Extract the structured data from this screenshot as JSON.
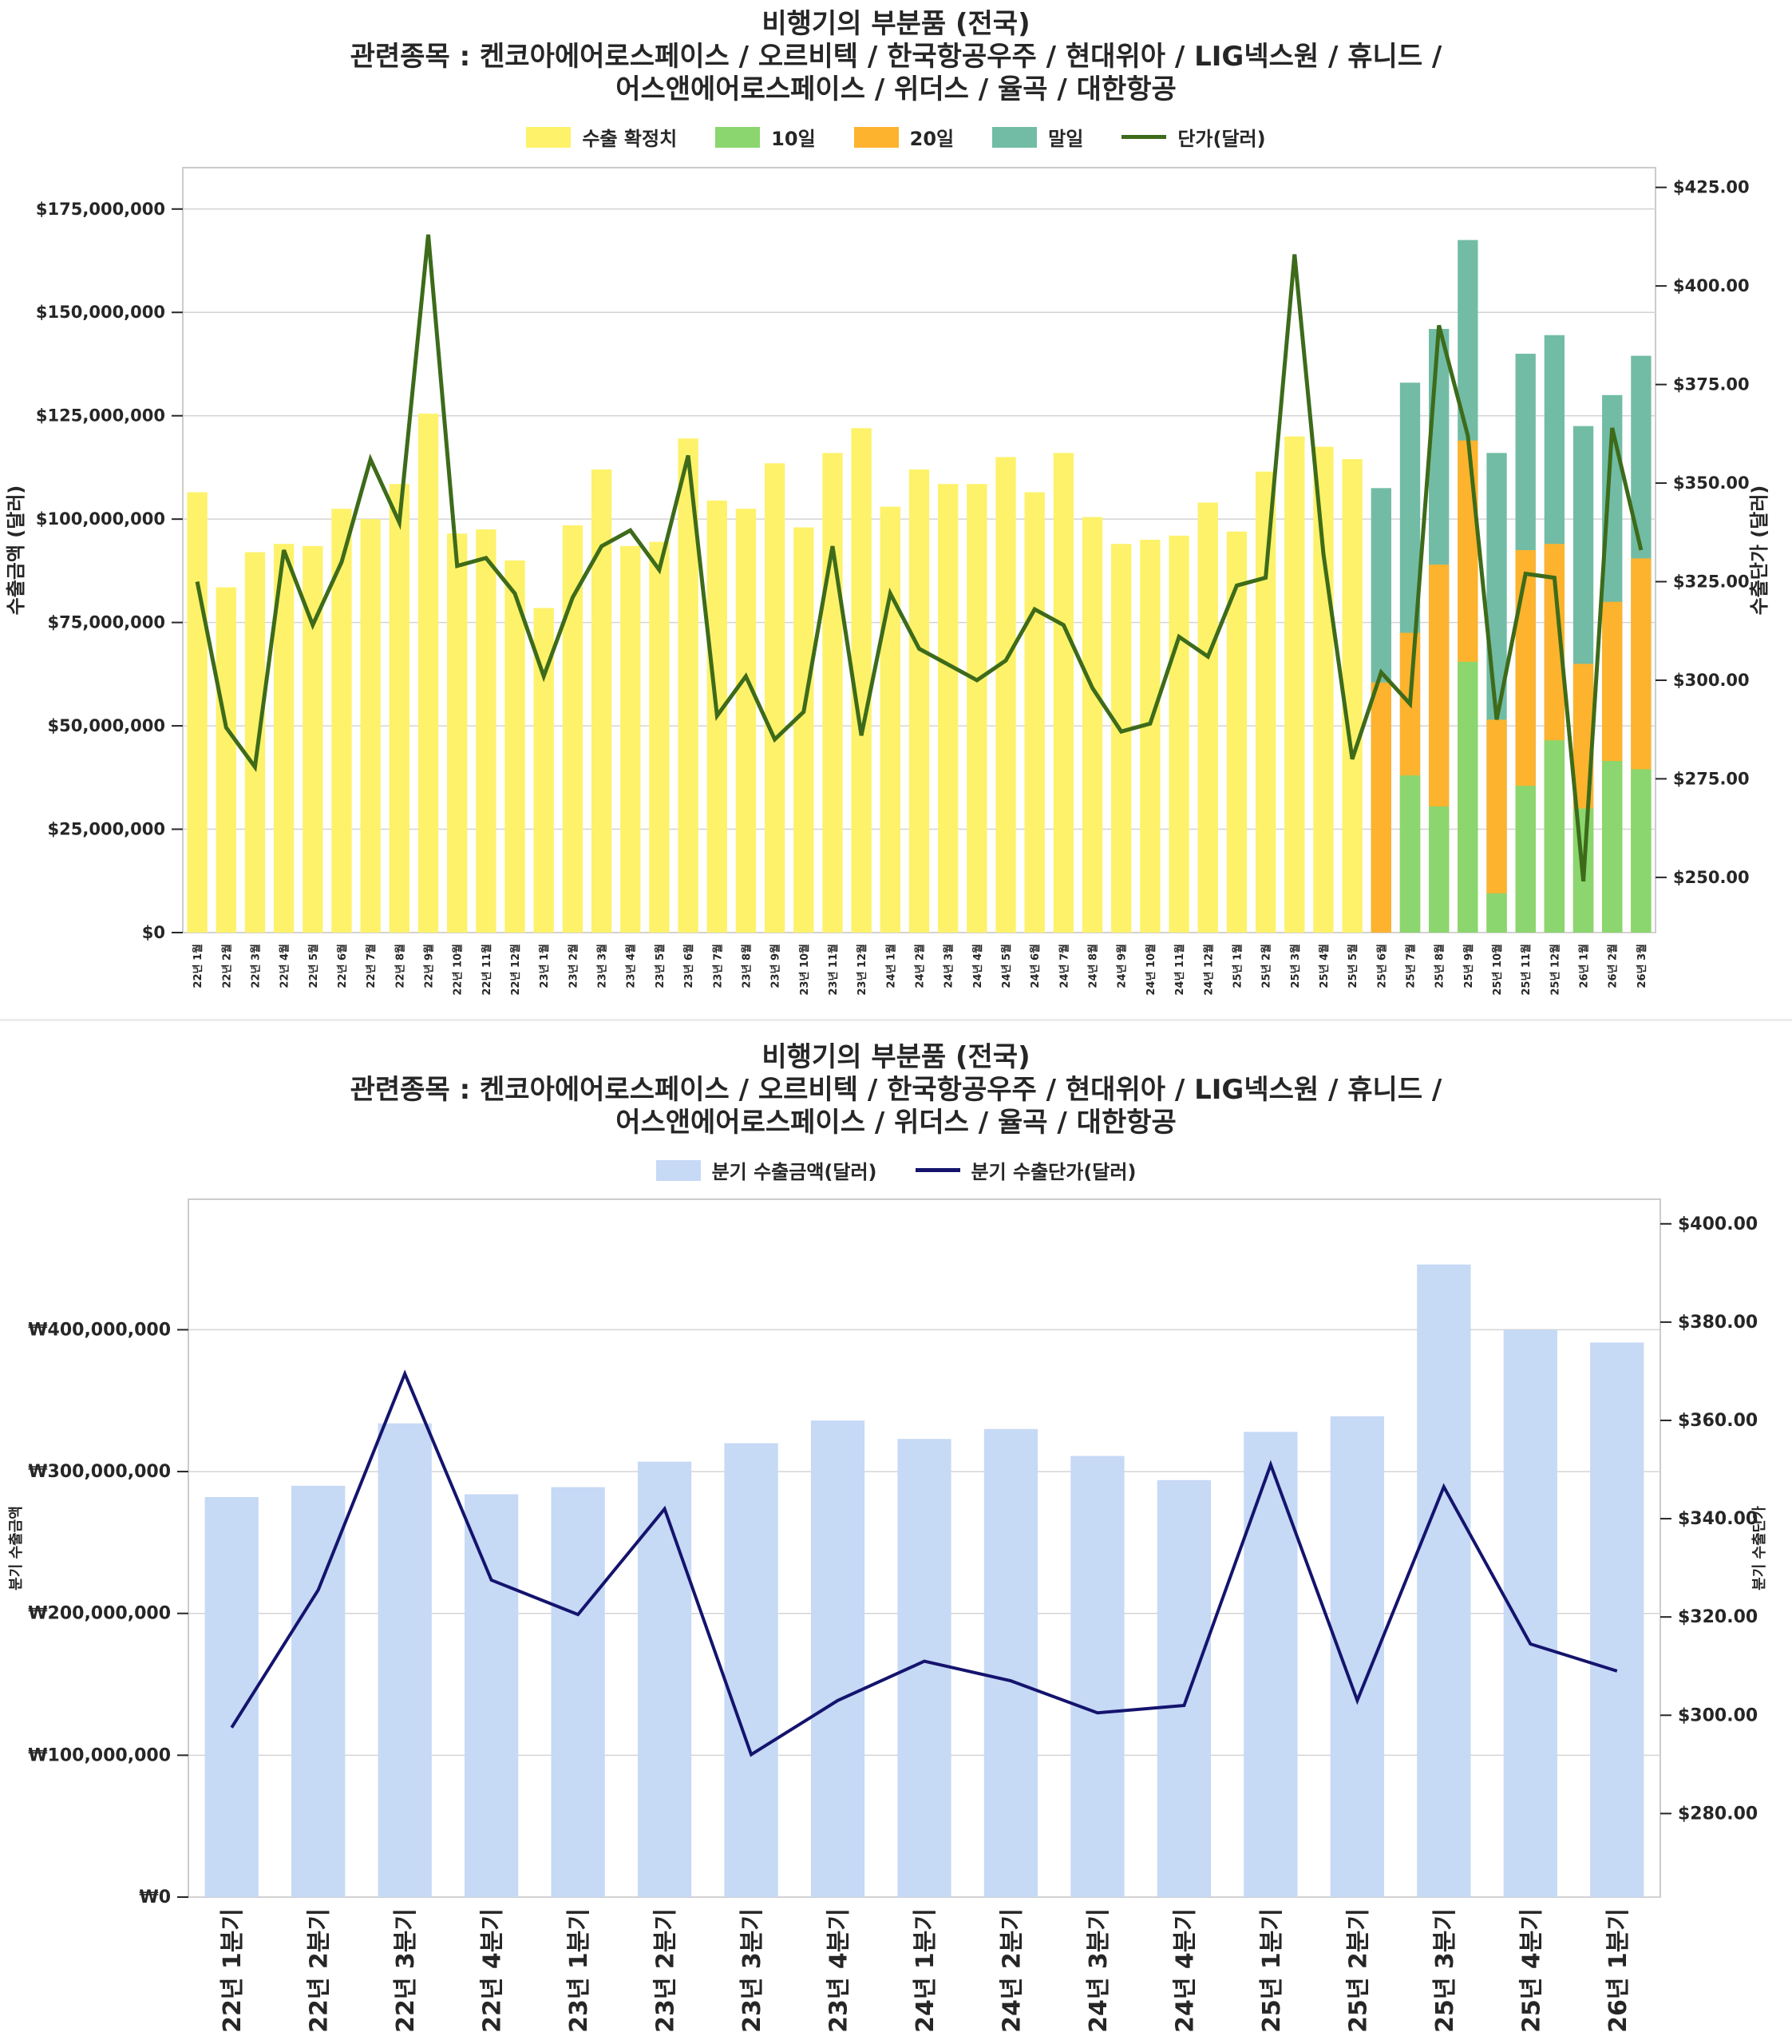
{
  "chart_data": [
    {
      "type": "bar",
      "title": "비행기의 부분품 (전국)",
      "subtitle_lines": [
        "관련종목 : 켄코아에어로스페이스 / 오르비텍 / 한국항공우주 / 현대위아 / LIG넥스원 / 휴니드 /",
        "어스앤에어로스페이스 / 위더스 / 율곡 / 대한항공"
      ],
      "xlabel": "",
      "ylabel": "수출금액 (달러)",
      "y2label": "수출단가 (달러)",
      "ylim": [
        0,
        185000000
      ],
      "y2lim": [
        236,
        430
      ],
      "yticks": [
        "$0",
        "$25,000,000",
        "$50,000,000",
        "$75,000,000",
        "$100,000,000",
        "$125,000,000",
        "$150,000,000",
        "$175,000,000"
      ],
      "ytick_values": [
        0,
        25000000,
        50000000,
        75000000,
        100000000,
        125000000,
        150000000,
        175000000
      ],
      "y2ticks": [
        "$250.00",
        "$275.00",
        "$300.00",
        "$325.00",
        "$350.00",
        "$375.00",
        "$400.00",
        "$425.00"
      ],
      "y2tick_values": [
        250,
        275,
        300,
        325,
        350,
        375,
        400,
        425
      ],
      "grid": true,
      "legend_position": "top-center",
      "legend": [
        {
          "name": "수출 확정치",
          "kind": "bar",
          "color": "#fdf26a"
        },
        {
          "name": "10일",
          "kind": "bar",
          "color": "#8bd66e"
        },
        {
          "name": "20일",
          "kind": "bar",
          "color": "#fdb32e"
        },
        {
          "name": "말일",
          "kind": "bar",
          "color": "#72bca5"
        },
        {
          "name": "단가(달러)",
          "kind": "line",
          "color": "#3d6b1a"
        }
      ],
      "categories": [
        "22년 1월",
        "22년 2월",
        "22년 3월",
        "22년 4월",
        "22년 5월",
        "22년 6월",
        "22년 7월",
        "22년 8월",
        "22년 9월",
        "22년 10월",
        "22년 11월",
        "22년 12월",
        "23년 1월",
        "23년 2월",
        "23년 3월",
        "23년 4월",
        "23년 5월",
        "23년 6월",
        "23년 7월",
        "23년 8월",
        "23년 9월",
        "23년 10월",
        "23년 11월",
        "23년 12월",
        "24년 1월",
        "24년 2월",
        "24년 3월",
        "24년 4월",
        "24년 5월",
        "24년 6월",
        "24년 7월",
        "24년 8월",
        "24년 9월",
        "24년 10월",
        "24년 11월",
        "24년 12월",
        "25년 1월",
        "25년 2월",
        "25년 3월",
        "25년 4월",
        "25년 5월",
        "25년 6월",
        "25년 7월",
        "25년 8월",
        "25년 9월",
        "25년 10월",
        "25년 11월",
        "25년 12월",
        "26년 1월",
        "26년 2월",
        "26년 3월"
      ],
      "series": [
        {
          "name": "수출 확정치",
          "values": [
            106500000,
            83500000,
            92000000,
            94000000,
            93500000,
            102500000,
            100000000,
            108500000,
            125500000,
            96500000,
            97500000,
            90000000,
            78500000,
            98500000,
            112000000,
            93500000,
            94500000,
            119500000,
            104500000,
            102500000,
            113500000,
            98000000,
            116000000,
            122000000,
            103000000,
            112000000,
            108500000,
            108500000,
            115000000,
            106500000,
            116000000,
            100500000,
            94000000,
            95000000,
            96000000,
            104000000,
            97000000,
            111500000,
            120000000,
            117500000,
            114500000,
            null,
            null,
            null,
            null,
            null,
            null,
            null,
            null,
            null,
            null
          ]
        },
        {
          "name": "10일",
          "values": [
            null,
            null,
            null,
            null,
            null,
            null,
            null,
            null,
            null,
            null,
            null,
            null,
            null,
            null,
            null,
            null,
            null,
            null,
            null,
            null,
            null,
            null,
            null,
            null,
            null,
            null,
            null,
            null,
            null,
            null,
            null,
            null,
            null,
            null,
            null,
            null,
            null,
            null,
            null,
            null,
            null,
            0,
            38000000,
            30500000,
            65500000,
            9500000,
            35500000,
            46500000,
            30000000,
            41500000,
            39500000
          ]
        },
        {
          "name": "20일",
          "values": [
            null,
            null,
            null,
            null,
            null,
            null,
            null,
            null,
            null,
            null,
            null,
            null,
            null,
            null,
            null,
            null,
            null,
            null,
            null,
            null,
            null,
            null,
            null,
            null,
            null,
            null,
            null,
            null,
            null,
            null,
            null,
            null,
            null,
            null,
            null,
            null,
            null,
            null,
            null,
            null,
            null,
            60500000,
            72500000,
            89000000,
            119000000,
            51500000,
            92500000,
            94000000,
            65000000,
            80000000,
            90500000
          ]
        },
        {
          "name": "말일",
          "values": [
            null,
            null,
            null,
            null,
            null,
            null,
            null,
            null,
            null,
            null,
            null,
            null,
            null,
            null,
            null,
            null,
            null,
            null,
            null,
            null,
            null,
            null,
            null,
            null,
            null,
            null,
            null,
            null,
            null,
            null,
            null,
            null,
            null,
            null,
            null,
            null,
            null,
            null,
            null,
            null,
            null,
            107500000,
            133000000,
            146000000,
            167500000,
            116000000,
            140000000,
            144500000,
            122500000,
            130000000,
            139500000
          ]
        },
        {
          "name": "단가(달러)",
          "axis": "right",
          "values": [
            325,
            288,
            278,
            333,
            314,
            330,
            356,
            340,
            413,
            329,
            331,
            322,
            301,
            321,
            334,
            338,
            328,
            357,
            291,
            301,
            285,
            292,
            334,
            286,
            322,
            308,
            304,
            300,
            305,
            318,
            314,
            298,
            287,
            289,
            311,
            306,
            324,
            326,
            408,
            332,
            280,
            302,
            294,
            390,
            362,
            290,
            327,
            326,
            249,
            364,
            333
          ]
        }
      ],
      "stack_note": "10일/20일/말일 values are cumulative month-to-date totals drawn overlapping"
    },
    {
      "type": "bar",
      "title": "비행기의 부분품 (전국)",
      "subtitle_lines": [
        "관련종목 : 켄코아에어로스페이스 / 오르비텍 / 한국항공우주 / 현대위아 / LIG넥스원 / 휴니드 /",
        "어스앤에어로스페이스 / 위더스 / 율곡 / 대한항공"
      ],
      "xlabel": "",
      "ylabel": "분기 수출금액",
      "y2label": "분기 수출단가",
      "ylim": [
        0,
        492000000
      ],
      "y2lim": [
        263,
        405
      ],
      "yticks": [
        "₩0",
        "₩100,000,000",
        "₩200,000,000",
        "₩300,000,000",
        "₩400,000,000"
      ],
      "ytick_values": [
        0,
        100000000,
        200000000,
        300000000,
        400000000
      ],
      "y2ticks": [
        "$280.00",
        "$300.00",
        "$320.00",
        "$340.00",
        "$360.00",
        "$380.00",
        "$400.00"
      ],
      "y2tick_values": [
        280,
        300,
        320,
        340,
        360,
        380,
        400
      ],
      "grid": true,
      "legend_position": "top-center",
      "legend": [
        {
          "name": "분기 수출금액(달러)",
          "kind": "bar",
          "color": "#c6d9f5"
        },
        {
          "name": "분기 수출단가(달러)",
          "kind": "line",
          "color": "#14146e"
        }
      ],
      "categories": [
        "22년 1분기",
        "22년 2분기",
        "22년 3분기",
        "22년 4분기",
        "23년 1분기",
        "23년 2분기",
        "23년 3분기",
        "23년 4분기",
        "24년 1분기",
        "24년 2분기",
        "24년 3분기",
        "24년 4분기",
        "25년 1분기",
        "25년 2분기",
        "25년 3분기",
        "25년 4분기",
        "26년 1분기"
      ],
      "series": [
        {
          "name": "분기 수출금액(달러)",
          "values": [
            282000000,
            290000000,
            334000000,
            284000000,
            289000000,
            307000000,
            320000000,
            336000000,
            323000000,
            330000000,
            311000000,
            294000000,
            328000000,
            339000000,
            446000000,
            400000000,
            391000000
          ]
        },
        {
          "name": "분기 수출단가(달러)",
          "axis": "right",
          "values": [
            297.5,
            325.5,
            369.5,
            327.5,
            320.5,
            342,
            292,
            303,
            311,
            307,
            300.5,
            302,
            351,
            303,
            346.5,
            314.5,
            309
          ]
        }
      ]
    }
  ]
}
